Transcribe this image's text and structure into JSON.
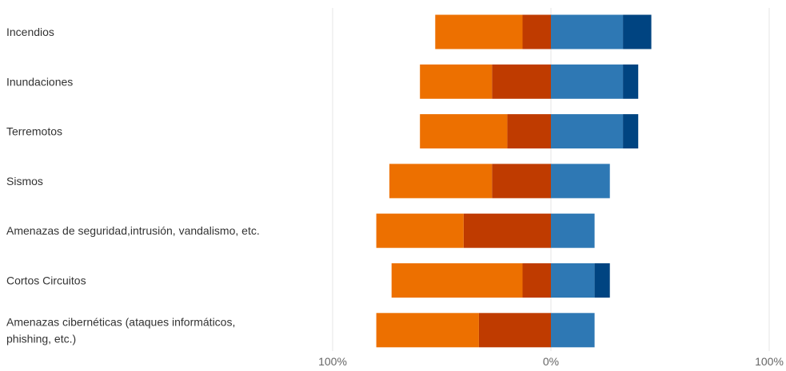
{
  "chart_data": {
    "type": "bar",
    "orientation": "horizontal-diverging",
    "stacked": true,
    "categories": [
      [
        "Incendios"
      ],
      [
        "Inundaciones"
      ],
      [
        "Terremotos"
      ],
      [
        "Sismos"
      ],
      [
        "Amenazas de seguridad,intrusión, vandalismo, etc."
      ],
      [
        "Cortos Circuitos"
      ],
      [
        "Amenazas cibernéticas (ataques informáticos,",
        "phishing, etc.)"
      ]
    ],
    "series": [
      {
        "color": "#bf3b00",
        "direction": "negative",
        "values": [
          13,
          27,
          20,
          27,
          40,
          13,
          33
        ]
      },
      {
        "color": "#ed7000",
        "direction": "negative",
        "values": [
          40,
          33,
          40,
          47,
          40,
          60,
          47
        ]
      },
      {
        "color": "#2e78b4",
        "direction": "positive",
        "values": [
          33,
          33,
          33,
          27,
          20,
          20,
          20
        ]
      },
      {
        "color": "#004481",
        "direction": "positive",
        "values": [
          13,
          7,
          7,
          0,
          0,
          7,
          0
        ]
      }
    ],
    "xlim": [
      -100,
      100
    ],
    "x_ticks": [
      "100%",
      "0%",
      "100%"
    ],
    "grid": true,
    "legend": "none"
  }
}
